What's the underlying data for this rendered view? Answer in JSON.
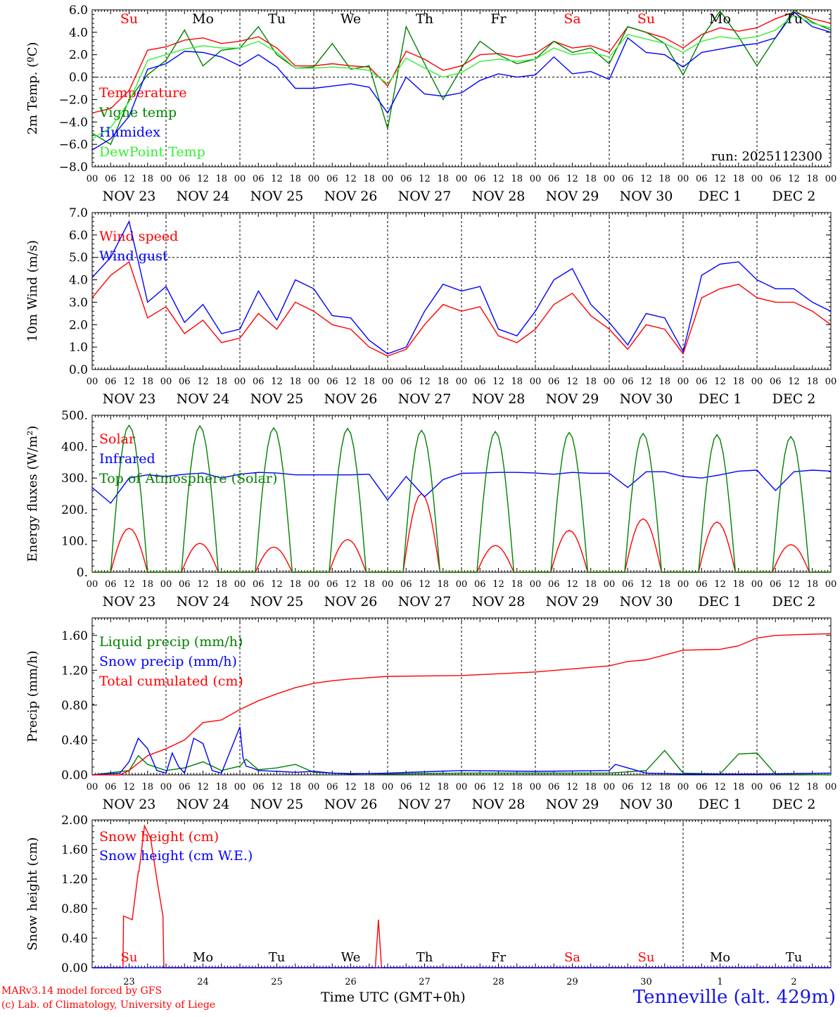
{
  "run_label": "run: 2025112300",
  "station": "Tenneville (alt. 429m)",
  "credits": [
    "MARv3.14 model forced by GFS",
    "(c) Lab. of Climatology, University of Liege"
  ],
  "x_axis_title": "Time UTC (GMT+0h)",
  "hour_ticks": [
    "00",
    "06",
    "12",
    "18"
  ],
  "date_labels": [
    "NOV 23",
    "NOV 24",
    "NOV 25",
    "NOV 26",
    "NOV 27",
    "NOV 28",
    "NOV 29",
    "NOV 30",
    "DEC  1",
    "DEC  2"
  ],
  "weekday_labels": [
    "Su",
    "Mo",
    "Tu",
    "We",
    "Th",
    "Fr",
    "Sa",
    "Su",
    "Mo",
    "Tu"
  ],
  "weekend_color": "#ff0000",
  "bottom_day_numbers": [
    "23",
    "24",
    "25",
    "26",
    "27",
    "28",
    "29",
    "30",
    "1",
    "2"
  ],
  "chart_data": [
    {
      "type": "line",
      "ylabel": "2m Temp. (ºC)",
      "yticks": [
        "6.0",
        "4.0",
        "2.0",
        "0.0",
        "−2.0",
        "−4.0",
        "−6.0",
        "−8.0"
      ],
      "ylim": [
        -8,
        6
      ],
      "x_hours_range": [
        0,
        240
      ],
      "series": [
        {
          "name": "Temperature",
          "color": "#ff0000",
          "x": [
            0,
            6,
            12,
            18,
            24,
            30,
            36,
            42,
            48,
            54,
            60,
            66,
            72,
            78,
            84,
            90,
            96,
            102,
            108,
            114,
            120,
            126,
            132,
            138,
            144,
            150,
            156,
            162,
            168,
            174,
            180,
            186,
            192,
            198,
            204,
            210,
            216,
            222,
            228,
            234,
            240
          ],
          "y": [
            -3.2,
            -2.8,
            -1.2,
            2.4,
            2.7,
            3.3,
            3.5,
            3.0,
            3.2,
            3.6,
            2.6,
            1.0,
            1.0,
            1.2,
            1.0,
            0.9,
            -0.8,
            2.3,
            1.6,
            0.6,
            1.0,
            2.0,
            2.1,
            1.8,
            2.1,
            3.2,
            2.6,
            2.8,
            2.2,
            4.5,
            4.0,
            3.5,
            2.6,
            3.8,
            4.4,
            4.1,
            4.4,
            5.2,
            5.8,
            5.2,
            4.8
          ]
        },
        {
          "name": "Vigne temp",
          "color": "#008000",
          "x": [
            0,
            6,
            12,
            18,
            24,
            30,
            36,
            42,
            48,
            54,
            60,
            66,
            72,
            78,
            84,
            90,
            96,
            102,
            108,
            114,
            120,
            126,
            132,
            138,
            144,
            150,
            156,
            162,
            168,
            174,
            180,
            186,
            192,
            198,
            204,
            210,
            216,
            222,
            228,
            234,
            240
          ],
          "y": [
            -5.0,
            -6.0,
            -2.0,
            0.2,
            1.5,
            4.2,
            1.0,
            2.4,
            2.6,
            4.5,
            2.0,
            0.8,
            0.9,
            3.0,
            0.7,
            1.0,
            -4.6,
            4.5,
            1.2,
            -2.0,
            0.8,
            3.2,
            2.0,
            1.2,
            1.6,
            3.2,
            2.2,
            2.6,
            1.2,
            4.5,
            4.0,
            3.0,
            0.2,
            3.5,
            5.9,
            3.6,
            1.0,
            3.5,
            6.0,
            4.9,
            4.2
          ]
        },
        {
          "name": "Humidex",
          "color": "#0000ff",
          "x": [
            0,
            6,
            12,
            18,
            24,
            30,
            36,
            42,
            48,
            54,
            60,
            66,
            72,
            78,
            84,
            90,
            96,
            102,
            108,
            114,
            120,
            126,
            132,
            138,
            144,
            150,
            156,
            162,
            168,
            174,
            180,
            186,
            192,
            198,
            204,
            210,
            216,
            222,
            228,
            234,
            240
          ],
          "y": [
            -6.5,
            -5.5,
            -3.5,
            0.7,
            1.2,
            2.3,
            2.2,
            1.8,
            1.0,
            2.0,
            0.9,
            -1.0,
            -1.0,
            -0.8,
            -0.6,
            -0.9,
            -3.2,
            0.0,
            -1.5,
            -1.7,
            -1.4,
            -0.3,
            0.3,
            0.0,
            0.2,
            1.8,
            0.3,
            0.5,
            -0.2,
            3.5,
            2.2,
            2.0,
            0.9,
            2.2,
            2.5,
            2.8,
            3.0,
            3.5,
            5.8,
            4.5,
            4.0
          ]
        },
        {
          "name": "DewPoint Temp",
          "color": "#33ee33",
          "x": [
            0,
            6,
            12,
            18,
            24,
            30,
            36,
            42,
            48,
            54,
            60,
            66,
            72,
            78,
            84,
            90,
            96,
            102,
            108,
            114,
            120,
            126,
            132,
            138,
            144,
            150,
            156,
            162,
            168,
            174,
            180,
            186,
            192,
            198,
            204,
            210,
            216,
            222,
            228,
            234,
            240
          ],
          "y": [
            -5.5,
            -4.5,
            -2.2,
            1.5,
            2.0,
            2.5,
            2.8,
            2.6,
            2.6,
            3.2,
            2.2,
            0.8,
            0.8,
            0.9,
            0.8,
            0.6,
            -0.6,
            1.7,
            0.8,
            0.0,
            0.4,
            1.4,
            1.6,
            1.4,
            1.6,
            2.6,
            2.0,
            2.2,
            1.8,
            3.8,
            3.4,
            3.0,
            2.2,
            3.2,
            3.6,
            3.4,
            3.6,
            4.2,
            5.5,
            4.8,
            4.4
          ]
        }
      ],
      "reference_line": 0
    },
    {
      "type": "line",
      "ylabel": "10m Wind (m/s)",
      "yticks": [
        "7.0",
        "6.0",
        "5.0",
        "4.0",
        "3.0",
        "2.0",
        "1.0",
        "0.0"
      ],
      "ylim": [
        0,
        7
      ],
      "x_hours_range": [
        0,
        240
      ],
      "series": [
        {
          "name": "Wind speed",
          "color": "#ff0000",
          "x": [
            0,
            6,
            12,
            18,
            24,
            30,
            36,
            42,
            48,
            54,
            60,
            66,
            72,
            78,
            84,
            90,
            96,
            102,
            108,
            114,
            120,
            126,
            132,
            138,
            144,
            150,
            156,
            162,
            168,
            174,
            180,
            186,
            192,
            198,
            204,
            210,
            216,
            222,
            228,
            234,
            240
          ],
          "y": [
            3.2,
            4.2,
            4.8,
            2.3,
            2.8,
            1.6,
            2.2,
            1.2,
            1.4,
            2.5,
            1.8,
            3.0,
            2.6,
            2.0,
            1.8,
            1.0,
            0.6,
            0.9,
            2.0,
            2.9,
            2.6,
            2.8,
            1.5,
            1.2,
            1.8,
            2.9,
            3.4,
            2.4,
            1.8,
            0.9,
            2.0,
            1.8,
            0.7,
            3.2,
            3.6,
            3.8,
            3.2,
            3.0,
            3.0,
            2.6,
            2.0
          ]
        },
        {
          "name": "Wind gust",
          "color": "#0000ff",
          "x": [
            0,
            6,
            12,
            18,
            24,
            30,
            36,
            42,
            48,
            54,
            60,
            66,
            72,
            78,
            84,
            90,
            96,
            102,
            108,
            114,
            120,
            126,
            132,
            138,
            144,
            150,
            156,
            162,
            168,
            174,
            180,
            186,
            192,
            198,
            204,
            210,
            216,
            222,
            228,
            234,
            240
          ],
          "y": [
            4.1,
            5.0,
            6.6,
            3.0,
            3.7,
            2.1,
            2.9,
            1.6,
            1.8,
            3.5,
            2.2,
            4.0,
            3.6,
            2.4,
            2.3,
            1.3,
            0.7,
            1.0,
            2.6,
            3.8,
            3.5,
            3.7,
            1.8,
            1.5,
            2.6,
            4.0,
            4.5,
            2.9,
            2.1,
            1.1,
            2.5,
            2.3,
            0.8,
            4.2,
            4.7,
            4.8,
            4.0,
            3.6,
            3.6,
            3.0,
            2.6
          ]
        }
      ],
      "reference_line": 5
    },
    {
      "type": "line",
      "ylabel": "Energy fluxes (W/m²)",
      "yticks": [
        "500.",
        "400.",
        "300.",
        "200.",
        "100.",
        "0."
      ],
      "ylim": [
        0,
        500
      ],
      "x_hours_range": [
        0,
        240
      ],
      "series": [
        {
          "name": "Solar",
          "color": "#ff0000",
          "peaks": [
            [
              12,
              140
            ],
            [
              35,
              92
            ],
            [
              59,
              80
            ],
            [
              83,
              104
            ],
            [
              107,
              250
            ],
            [
              131,
              85
            ],
            [
              155,
              133
            ],
            [
              179,
              170
            ],
            [
              203,
              160
            ],
            [
              227,
              88
            ]
          ]
        },
        {
          "name": "Infrared",
          "color": "#0000ff",
          "x": [
            0,
            6,
            12,
            18,
            24,
            30,
            36,
            42,
            48,
            54,
            60,
            66,
            72,
            78,
            84,
            90,
            96,
            102,
            108,
            114,
            120,
            126,
            132,
            138,
            144,
            150,
            156,
            162,
            168,
            174,
            180,
            186,
            192,
            198,
            204,
            210,
            216,
            222,
            228,
            234,
            240
          ],
          "y": [
            270,
            220,
            300,
            310,
            305,
            312,
            316,
            300,
            312,
            318,
            316,
            310,
            310,
            310,
            310,
            312,
            230,
            305,
            240,
            295,
            315,
            316,
            318,
            318,
            316,
            312,
            318,
            315,
            315,
            270,
            320,
            320,
            305,
            300,
            310,
            322,
            325,
            260,
            320,
            325,
            322
          ]
        },
        {
          "name": "Top of Atmosphere (Solar)",
          "color": "#008000",
          "peaks": [
            [
              12,
              468
            ],
            [
              35,
              466
            ],
            [
              59,
              460
            ],
            [
              83,
              458
            ],
            [
              107,
              452
            ],
            [
              131,
              448
            ],
            [
              155,
              445
            ],
            [
              179,
              442
            ],
            [
              203,
              438
            ],
            [
              227,
              432
            ]
          ]
        }
      ]
    },
    {
      "type": "line",
      "ylabel": "Precip (mm/h)",
      "yticks": [
        "1.60",
        "1.20",
        "0.80",
        "0.40",
        "0.00"
      ],
      "ylim": [
        0,
        1.8
      ],
      "x_hours_range": [
        0,
        240
      ],
      "series": [
        {
          "name": "Liquid precip (mm/h)",
          "color": "#008000",
          "x": [
            0,
            12,
            15,
            18,
            24,
            30,
            36,
            42,
            48,
            50,
            54,
            60,
            66,
            72,
            78,
            96,
            120,
            144,
            168,
            180,
            186,
            192,
            204,
            210,
            216,
            222,
            240
          ],
          "y": [
            0,
            0.05,
            0.22,
            0.12,
            0.05,
            0.08,
            0.15,
            0.05,
            0.1,
            0.18,
            0.06,
            0.08,
            0.12,
            0.03,
            0.02,
            0.01,
            0.02,
            0.02,
            0.02,
            0.05,
            0.28,
            0.02,
            0.01,
            0.24,
            0.25,
            0.01,
            0
          ]
        },
        {
          "name": "Snow precip (mm/h)",
          "color": "#0000ff",
          "x": [
            0,
            9,
            12,
            15,
            18,
            21,
            24,
            26,
            28,
            30,
            33,
            36,
            39,
            42,
            48,
            49,
            50,
            52,
            54,
            60,
            66,
            72,
            78,
            84,
            96,
            120,
            144,
            168,
            170,
            180,
            192,
            216,
            240
          ],
          "y": [
            0,
            0.02,
            0.15,
            0.42,
            0.3,
            0.05,
            0.02,
            0.25,
            0.1,
            0.02,
            0.42,
            0.36,
            0.05,
            0.02,
            0.55,
            0.2,
            0.1,
            0.08,
            0.05,
            0.04,
            0.03,
            0.04,
            0.02,
            0.01,
            0.02,
            0.05,
            0.04,
            0.05,
            0.12,
            0.02,
            0.01,
            0.01,
            0.02
          ]
        },
        {
          "name": "Total cumulated (cm)",
          "color": "#ff0000",
          "x": [
            0,
            9,
            12,
            18,
            24,
            30,
            36,
            42,
            48,
            54,
            60,
            66,
            72,
            78,
            84,
            96,
            120,
            144,
            168,
            174,
            180,
            192,
            204,
            210,
            216,
            222,
            240
          ],
          "y": [
            0,
            0,
            0.05,
            0.22,
            0.3,
            0.4,
            0.6,
            0.63,
            0.75,
            0.85,
            0.93,
            1.0,
            1.05,
            1.08,
            1.1,
            1.13,
            1.14,
            1.18,
            1.25,
            1.3,
            1.32,
            1.43,
            1.44,
            1.48,
            1.57,
            1.6,
            1.62
          ]
        }
      ]
    },
    {
      "type": "line",
      "ylabel": "Snow height (cm)",
      "yticks": [
        "2.00",
        "1.60",
        "1.20",
        "0.80",
        "0.40",
        "0.00"
      ],
      "ylim": [
        0,
        2
      ],
      "x_hours_range": [
        0,
        240
      ],
      "series": [
        {
          "name": "Snow height (cm)",
          "color": "#ff0000",
          "x": [
            0,
            10,
            10.2,
            13,
            15,
            15.2,
            17,
            19,
            21,
            23,
            23.3,
            24,
            90,
            92,
            93,
            94,
            240
          ],
          "y": [
            0,
            0,
            0.7,
            0.65,
            1.3,
            1.3,
            1.92,
            1.75,
            1.2,
            0.7,
            0,
            0,
            0,
            0,
            0.65,
            0,
            0
          ]
        },
        {
          "name": "Snow height (cm W.E.)",
          "color": "#0000ff",
          "x": [
            0,
            240
          ],
          "y": [
            0,
            0
          ]
        }
      ]
    }
  ]
}
